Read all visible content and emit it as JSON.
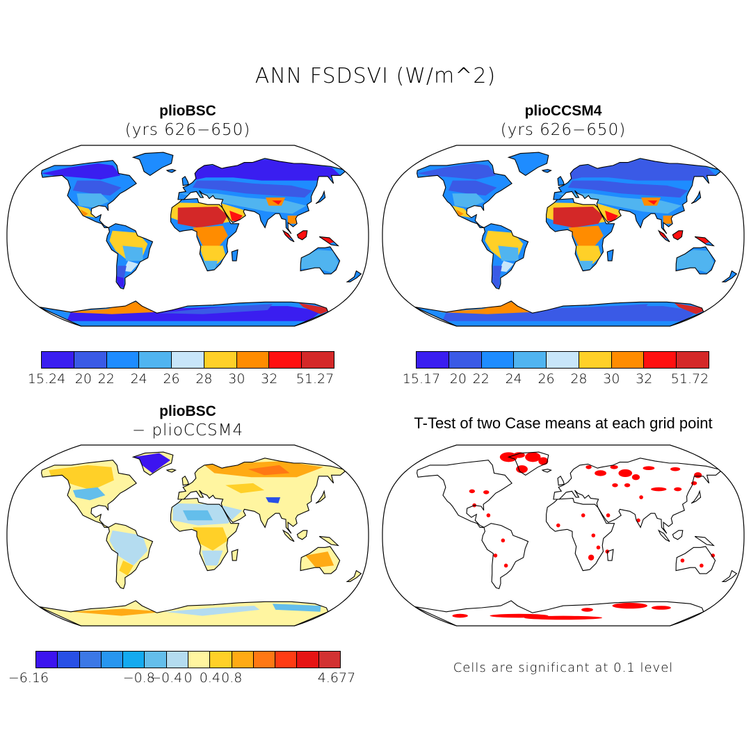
{
  "title": "ANN FSDSVI (W/m^2)",
  "panels": [
    {
      "title": "plioBSC",
      "subtitle": "(yrs 626−650)",
      "colorbar": {
        "colors": [
          "#3a1ef0",
          "#3a5ae6",
          "#1e8cff",
          "#50b4f0",
          "#c8e6fa",
          "#ffd028",
          "#ff8c00",
          "#ff1010",
          "#d42828"
        ],
        "labels": [
          "15.24",
          "20",
          "22",
          "24",
          "26",
          "28",
          "30",
          "32",
          "51.27"
        ]
      }
    },
    {
      "title": "plioCCSM4",
      "subtitle": "(yrs 626−650)",
      "colorbar": {
        "colors": [
          "#3a1ef0",
          "#3a5ae6",
          "#1e8cff",
          "#50b4f0",
          "#c8e6fa",
          "#ffd028",
          "#ff8c00",
          "#ff1010",
          "#d42828"
        ],
        "labels": [
          "15.17",
          "20",
          "22",
          "24",
          "26",
          "28",
          "30",
          "32",
          "51.72"
        ]
      }
    },
    {
      "title": "plioBSC",
      "subtitle": "− plioCCSM4",
      "colorbar": {
        "colors": [
          "#3c14f0",
          "#2850e6",
          "#3c78e6",
          "#2896f0",
          "#14aaf0",
          "#64beeb",
          "#b4dcf0",
          "#fff5a0",
          "#ffd028",
          "#ffaa14",
          "#ff7814",
          "#ff3c14",
          "#e61414",
          "#d23232"
        ],
        "labels": [
          "−6.16",
          "−0.8",
          "−0.4",
          "0",
          "0.4",
          "0.8",
          "4.677"
        ]
      }
    },
    {
      "title": "T-Test of two Case means at each grid point",
      "note": "Cells are significant at 0.1 level",
      "significance_color": "#ff0000"
    }
  ]
}
